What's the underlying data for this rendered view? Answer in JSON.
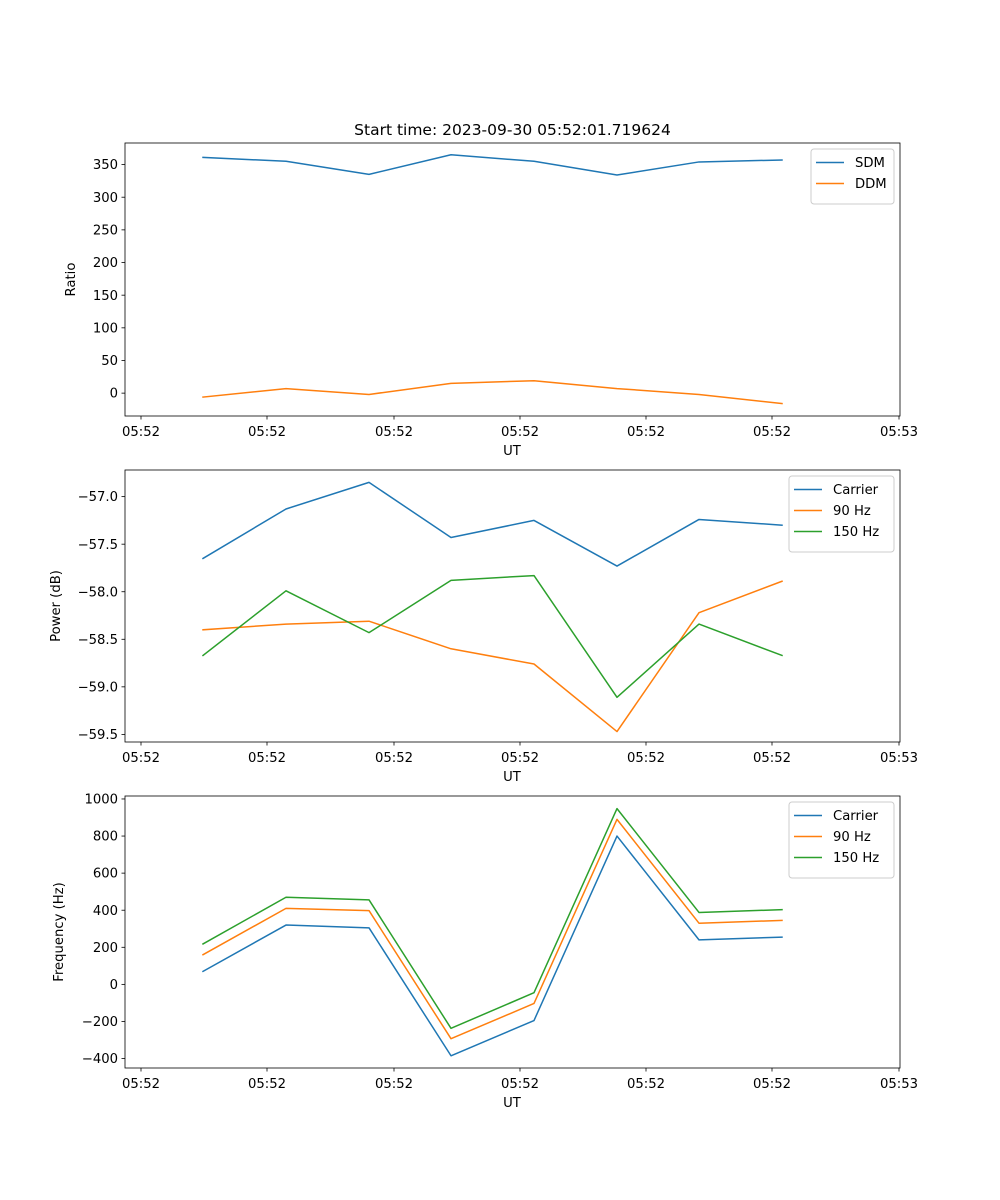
{
  "chart_data": [
    {
      "type": "line",
      "title": "Start time: 2023-09-30 05:52:01.719624",
      "xlabel": "UT",
      "ylabel": "Ratio",
      "x_tick_labels": [
        "05:52",
        "05:52",
        "05:52",
        "05:52",
        "05:52",
        "05:52",
        "05:52"
      ],
      "x_end_label": "05:53",
      "y_ticks": [
        0,
        50,
        100,
        150,
        200,
        250,
        300,
        350
      ],
      "y_tick_labels": [
        "0",
        "50",
        "100",
        "150",
        "200",
        "250",
        "300",
        "350"
      ],
      "ylim": [
        -35,
        383
      ],
      "legend_position": "top-right",
      "series": [
        {
          "name": "SDM",
          "color": "#1f77b4",
          "values": [
            361,
            355,
            335,
            365,
            355,
            334,
            354,
            357
          ]
        },
        {
          "name": "DDM",
          "color": "#ff7f0e",
          "values": [
            -6,
            7,
            -2,
            15,
            19,
            7,
            -2,
            -16
          ]
        }
      ]
    },
    {
      "type": "line",
      "title": "",
      "xlabel": "UT",
      "ylabel": "Power (dB)",
      "x_tick_labels": [
        "05:52",
        "05:52",
        "05:52",
        "05:52",
        "05:52",
        "05:52",
        "05:52"
      ],
      "x_end_label": "05:53",
      "y_ticks": [
        -57.0,
        -57.5,
        -58.0,
        -58.5,
        -59.0,
        -59.5
      ],
      "y_tick_labels": [
        "−57.0",
        "−57.5",
        "−58.0",
        "−58.5",
        "−59.0",
        "−59.5"
      ],
      "ylim": [
        -59.58,
        -56.72
      ],
      "legend_position": "top-right",
      "series": [
        {
          "name": "Carrier",
          "color": "#1f77b4",
          "values": [
            -57.65,
            -57.13,
            -56.85,
            -57.43,
            -57.25,
            -57.73,
            -57.24,
            -57.3
          ]
        },
        {
          "name": "90 Hz",
          "color": "#ff7f0e",
          "values": [
            -58.4,
            -58.34,
            -58.31,
            -58.6,
            -58.76,
            -59.47,
            -58.22,
            -57.89
          ]
        },
        {
          "name": "150 Hz",
          "color": "#2ca02c",
          "values": [
            -58.67,
            -57.99,
            -58.43,
            -57.88,
            -57.83,
            -59.11,
            -58.34,
            -58.67
          ]
        }
      ]
    },
    {
      "type": "line",
      "title": "",
      "xlabel": "UT",
      "ylabel": "Frequency (Hz)",
      "x_tick_labels": [
        "05:52",
        "05:52",
        "05:52",
        "05:52",
        "05:52",
        "05:52",
        "05:52"
      ],
      "x_end_label": "05:53",
      "y_ticks": [
        -400,
        -200,
        0,
        200,
        400,
        600,
        800,
        1000
      ],
      "y_tick_labels": [
        "−400",
        "−200",
        "0",
        "200",
        "400",
        "600",
        "800",
        "1000"
      ],
      "ylim": [
        -451,
        1016
      ],
      "legend_position": "top-right",
      "series": [
        {
          "name": "Carrier",
          "color": "#1f77b4",
          "values": [
            70,
            320,
            305,
            -385,
            -195,
            800,
            240,
            255
          ]
        },
        {
          "name": "90 Hz",
          "color": "#ff7f0e",
          "values": [
            160,
            410,
            398,
            -293,
            -103,
            890,
            330,
            345
          ]
        },
        {
          "name": "150 Hz",
          "color": "#2ca02c",
          "values": [
            218,
            470,
            456,
            -237,
            -45,
            948,
            388,
            403
          ]
        }
      ]
    }
  ]
}
